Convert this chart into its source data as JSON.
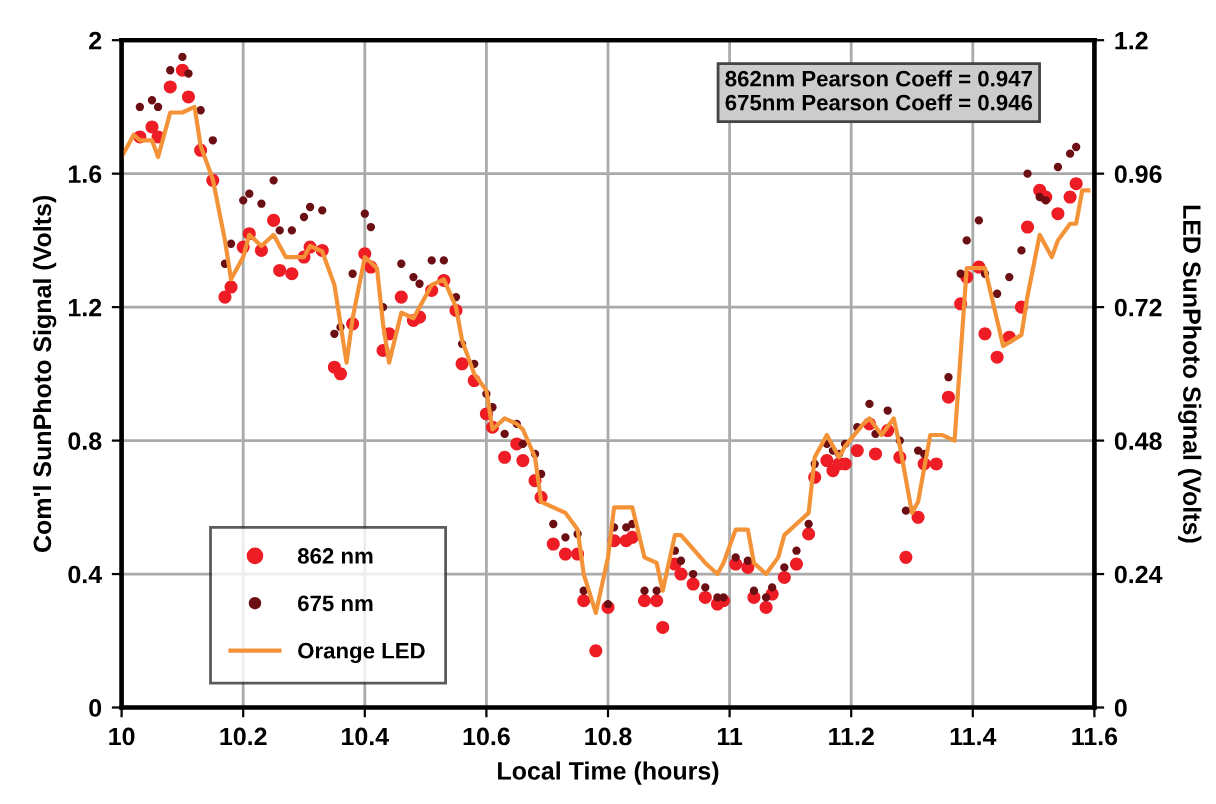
{
  "chart_data": {
    "type": "scatter",
    "xlabel": "Local Time (hours)",
    "ylabel": "Com'l SunPhoto Signal (Volts)",
    "y2label": "LED SunPhoto Signal (Volts)",
    "xlim": [
      10,
      11.6
    ],
    "xticks": [
      10,
      10.2,
      10.4,
      10.6,
      10.8,
      11,
      11.2,
      11.4,
      11.6
    ],
    "ylim": [
      0,
      2
    ],
    "yticks": [
      0,
      0.4,
      0.8,
      1.2,
      1.6,
      2
    ],
    "y2lim": [
      0,
      1.2
    ],
    "y2ticks": [
      0,
      0.24,
      0.48,
      0.72,
      0.96,
      1.2
    ],
    "grid": true,
    "legend": "bottom left",
    "marker": "circle",
    "annotations": [
      "862nm Pearson Coeff = 0.947",
      "675nm Pearson Coeff = 0.946"
    ],
    "series": [
      {
        "name": "862 nm",
        "color": "#ee1c24",
        "x": [
          10.03,
          10.05,
          10.06,
          10.08,
          10.1,
          10.11,
          10.13,
          10.15,
          10.17,
          10.18,
          10.2,
          10.21,
          10.23,
          10.25,
          10.26,
          10.28,
          10.3,
          10.31,
          10.33,
          10.35,
          10.36,
          10.38,
          10.4,
          10.41,
          10.43,
          10.44,
          10.46,
          10.48,
          10.49,
          10.51,
          10.53,
          10.55,
          10.56,
          10.58,
          10.6,
          10.61,
          10.63,
          10.65,
          10.66,
          10.68,
          10.69,
          10.71,
          10.73,
          10.75,
          10.76,
          10.78,
          10.8,
          10.81,
          10.83,
          10.84,
          10.86,
          10.88,
          10.89,
          10.91,
          10.92,
          10.94,
          10.96,
          10.98,
          10.99,
          11.01,
          11.03,
          11.04,
          11.06,
          11.07,
          11.09,
          11.11,
          11.13,
          11.14,
          11.16,
          11.17,
          11.18,
          11.19,
          11.21,
          11.23,
          11.24,
          11.26,
          11.28,
          11.29,
          11.31,
          11.32,
          11.34,
          11.36,
          11.38,
          11.39,
          11.41,
          11.42,
          11.44,
          11.46,
          11.48,
          11.49,
          11.51,
          11.52,
          11.54,
          11.56,
          11.57
        ],
        "values": [
          1.71,
          1.74,
          1.71,
          1.86,
          1.91,
          1.83,
          1.67,
          1.58,
          1.23,
          1.26,
          1.38,
          1.42,
          1.37,
          1.46,
          1.31,
          1.3,
          1.35,
          1.38,
          1.37,
          1.02,
          1.0,
          1.15,
          1.36,
          1.32,
          1.07,
          1.12,
          1.23,
          1.16,
          1.17,
          1.25,
          1.28,
          1.19,
          1.03,
          0.98,
          0.88,
          0.84,
          0.75,
          0.79,
          0.74,
          0.68,
          0.63,
          0.49,
          0.46,
          0.46,
          0.32,
          0.17,
          0.3,
          0.5,
          0.5,
          0.51,
          0.32,
          0.32,
          0.24,
          0.43,
          0.4,
          0.37,
          0.33,
          0.31,
          0.32,
          0.43,
          0.42,
          0.33,
          0.3,
          0.34,
          0.39,
          0.43,
          0.52,
          0.69,
          0.74,
          0.71,
          0.73,
          0.73,
          0.77,
          0.85,
          0.76,
          0.83,
          0.75,
          0.45,
          0.57,
          0.73,
          0.73,
          0.93,
          1.21,
          1.29,
          1.32,
          1.12,
          1.05,
          1.11,
          1.2,
          1.44,
          1.55,
          1.53,
          1.48,
          1.53,
          1.57
        ]
      },
      {
        "name": "675 nm",
        "color": "#6b0f14",
        "x": [
          10.03,
          10.05,
          10.06,
          10.08,
          10.1,
          10.11,
          10.13,
          10.15,
          10.17,
          10.18,
          10.2,
          10.21,
          10.23,
          10.25,
          10.26,
          10.28,
          10.3,
          10.31,
          10.33,
          10.35,
          10.36,
          10.38,
          10.4,
          10.41,
          10.43,
          10.46,
          10.48,
          10.49,
          10.51,
          10.53,
          10.55,
          10.56,
          10.58,
          10.6,
          10.61,
          10.63,
          10.65,
          10.66,
          10.68,
          10.69,
          10.71,
          10.73,
          10.75,
          10.76,
          10.8,
          10.81,
          10.83,
          10.84,
          10.86,
          10.88,
          10.91,
          10.92,
          10.94,
          10.96,
          10.98,
          10.99,
          11.01,
          11.03,
          11.04,
          11.06,
          11.07,
          11.09,
          11.11,
          11.13,
          11.14,
          11.16,
          11.17,
          11.18,
          11.19,
          11.21,
          11.23,
          11.24,
          11.26,
          11.28,
          11.29,
          11.31,
          11.32,
          11.36,
          11.38,
          11.39,
          11.41,
          11.42,
          11.44,
          11.46,
          11.48,
          11.49,
          11.51,
          11.52,
          11.54,
          11.56,
          11.57
        ],
        "values": [
          1.8,
          1.82,
          1.8,
          1.91,
          1.95,
          1.9,
          1.79,
          1.7,
          1.33,
          1.39,
          1.52,
          1.54,
          1.51,
          1.58,
          1.43,
          1.43,
          1.47,
          1.5,
          1.49,
          1.12,
          1.14,
          1.3,
          1.48,
          1.44,
          1.2,
          1.33,
          1.29,
          1.27,
          1.34,
          1.34,
          1.23,
          1.09,
          1.03,
          0.94,
          0.9,
          0.82,
          0.85,
          0.79,
          0.76,
          0.7,
          0.55,
          0.51,
          0.52,
          0.35,
          0.31,
          0.54,
          0.54,
          0.55,
          0.35,
          0.35,
          0.47,
          0.44,
          0.4,
          0.36,
          0.33,
          0.33,
          0.45,
          0.44,
          0.35,
          0.33,
          0.36,
          0.42,
          0.47,
          0.55,
          0.73,
          0.79,
          0.77,
          0.76,
          0.79,
          0.84,
          0.91,
          0.82,
          0.89,
          0.8,
          0.59,
          0.77,
          0.76,
          0.99,
          1.3,
          1.4,
          1.46,
          1.3,
          1.24,
          1.29,
          1.37,
          1.6,
          1.53,
          1.52,
          1.62,
          1.66,
          1.68
        ]
      },
      {
        "name": "Orange LED",
        "type": "line",
        "marker": "none",
        "axis": "y2",
        "color": "#f39237",
        "x": [
          10.0,
          10.02,
          10.03,
          10.05,
          10.06,
          10.08,
          10.1,
          10.12,
          10.13,
          10.15,
          10.17,
          10.18,
          10.2,
          10.21,
          10.23,
          10.25,
          10.27,
          10.29,
          10.3,
          10.31,
          10.33,
          10.35,
          10.37,
          10.38,
          10.4,
          10.42,
          10.43,
          10.44,
          10.46,
          10.48,
          10.49,
          10.51,
          10.53,
          10.55,
          10.56,
          10.58,
          10.6,
          10.61,
          10.63,
          10.65,
          10.66,
          10.68,
          10.69,
          10.71,
          10.73,
          10.75,
          10.76,
          10.78,
          10.8,
          10.81,
          10.84,
          10.86,
          10.88,
          10.89,
          10.91,
          10.92,
          10.96,
          10.98,
          10.99,
          11.01,
          11.03,
          11.04,
          11.06,
          11.08,
          11.09,
          11.11,
          11.13,
          11.14,
          11.16,
          11.17,
          11.18,
          11.19,
          11.22,
          11.23,
          11.25,
          11.27,
          11.28,
          11.3,
          11.31,
          11.33,
          11.35,
          11.37,
          11.39,
          11.42,
          11.45,
          11.48,
          11.49,
          11.51,
          11.53,
          11.54,
          11.56,
          11.57,
          11.58,
          11.59
        ],
        "values": [
          0.99,
          1.03,
          1.02,
          1.02,
          0.99,
          1.07,
          1.07,
          1.08,
          1.01,
          0.95,
          0.84,
          0.77,
          0.81,
          0.85,
          0.83,
          0.85,
          0.81,
          0.81,
          0.81,
          0.83,
          0.82,
          0.76,
          0.62,
          0.7,
          0.81,
          0.79,
          0.69,
          0.62,
          0.71,
          0.7,
          0.72,
          0.76,
          0.77,
          0.72,
          0.66,
          0.6,
          0.57,
          0.5,
          0.52,
          0.51,
          0.5,
          0.45,
          0.37,
          0.36,
          0.35,
          0.32,
          0.24,
          0.17,
          0.27,
          0.36,
          0.36,
          0.27,
          0.26,
          0.21,
          0.31,
          0.31,
          0.26,
          0.24,
          0.26,
          0.32,
          0.32,
          0.26,
          0.24,
          0.27,
          0.31,
          0.33,
          0.35,
          0.45,
          0.49,
          0.47,
          0.45,
          0.47,
          0.51,
          0.52,
          0.49,
          0.52,
          0.47,
          0.35,
          0.37,
          0.49,
          0.49,
          0.48,
          0.79,
          0.79,
          0.65,
          0.67,
          0.74,
          0.85,
          0.81,
          0.84,
          0.87,
          0.87,
          0.93,
          0.93
        ]
      }
    ]
  }
}
